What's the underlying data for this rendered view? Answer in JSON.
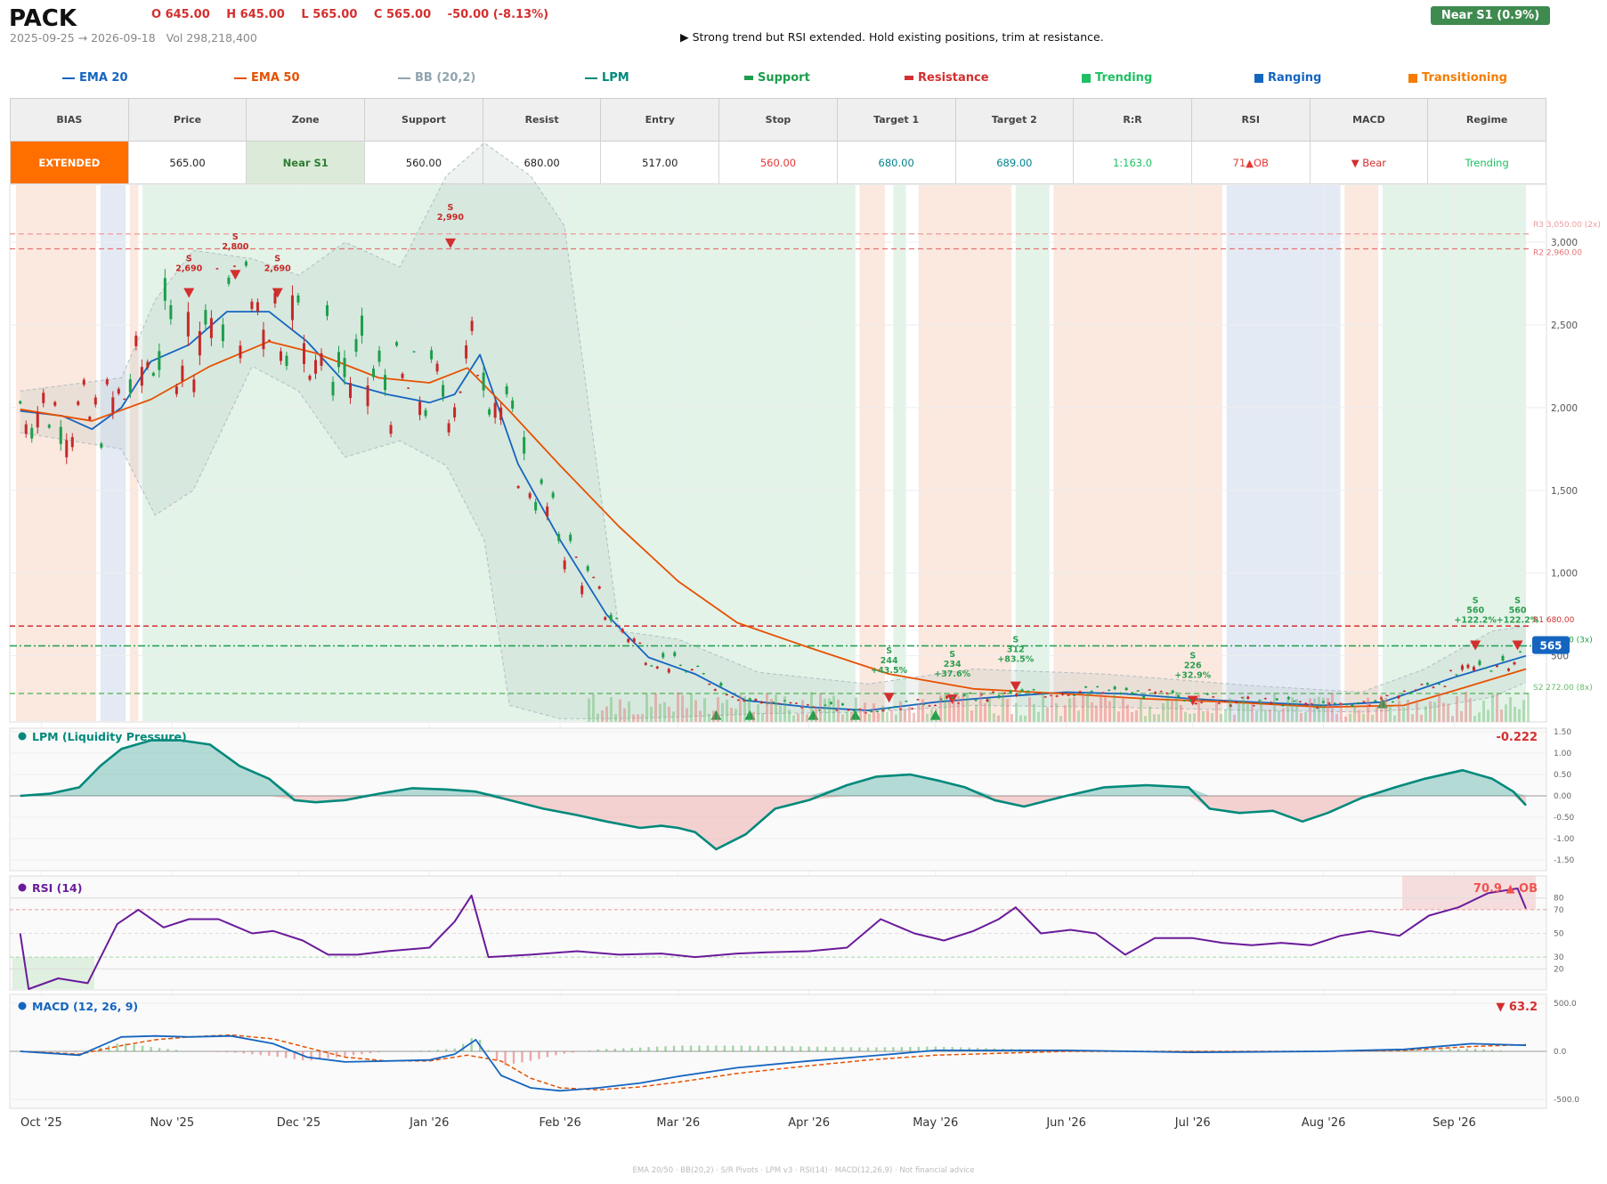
{
  "header": {
    "ticker": "PACK",
    "ohlc": [
      "O 645.00",
      "H 645.00",
      "L 565.00",
      "C 565.00",
      "-50.00  (-8.13%)"
    ],
    "date_range": "2025-09-25 → 2026-09-18",
    "volume": "Vol 298,218,400",
    "advice": "▶  Strong trend but RSI extended. Hold existing positions, trim at resistance.",
    "zone_badge": "Near S1  (0.9%)"
  },
  "legend": [
    {
      "label": "EMA 20",
      "color": "#1565c0",
      "shape": "line"
    },
    {
      "label": "EMA 50",
      "color": "#e65100",
      "shape": "line"
    },
    {
      "label": "BB (20,2)",
      "color": "#90a4ae",
      "shape": "line"
    },
    {
      "label": "LPM",
      "color": "#00897b",
      "shape": "line"
    },
    {
      "label": "Support",
      "color": "#1b9e4b",
      "shape": "dash"
    },
    {
      "label": "Resistance",
      "color": "#d32f2f",
      "shape": "dash"
    },
    {
      "label": "Trending",
      "color": "#1fc063",
      "shape": "square"
    },
    {
      "label": "Ranging",
      "color": "#1565c0",
      "shape": "square"
    },
    {
      "label": "Transitioning",
      "color": "#f57c00",
      "shape": "square"
    }
  ],
  "stats_table": {
    "headers": [
      "BIAS",
      "Price",
      "Zone",
      "Support",
      "Resist",
      "Entry",
      "Stop",
      "Target 1",
      "Target 2",
      "R:R",
      "RSI",
      "MACD",
      "Regime"
    ],
    "values": [
      "EXTENDED",
      "565.00",
      "Near S1",
      "560.00",
      "680.00",
      "517.00",
      "560.00",
      "680.00",
      "689.00",
      "1:163.0",
      "71▲OB",
      "▼ Bear",
      "Trending"
    ],
    "value_colors": [
      "#ffffff",
      "#222222",
      "#2e7d32",
      "#222222",
      "#222222",
      "#222222",
      "#e53935",
      "#00838f",
      "#00838f",
      "#1fc063",
      "#e53935",
      "#d32f2f",
      "#1fc063"
    ],
    "bias_bg": "#ff6f00",
    "zone_bg": "#dcebd9"
  },
  "chart_data": [
    {
      "type": "candlestick",
      "title": "PACK",
      "x_ticks": [
        "Oct '25",
        "Nov '25",
        "Dec '25",
        "Jan '26",
        "Feb '26",
        "Mar '26",
        "Apr '26",
        "May '26",
        "Jun '26",
        "Jul '26",
        "Aug '26",
        "Sep '26"
      ],
      "x_range": [
        "2025-09-25",
        "2026-09-18"
      ],
      "y_ticks": [
        500,
        1000,
        1500,
        2000,
        2500,
        3000
      ],
      "ylim": [
        100,
        3350
      ],
      "series": [
        {
          "name": "EMA 20",
          "color": "#1565c0",
          "x": [
            "2025-09-26",
            "2025-10-06",
            "2025-10-13",
            "2025-10-20",
            "2025-10-27",
            "2025-11-05",
            "2025-11-14",
            "2025-11-24",
            "2025-12-03",
            "2025-12-12",
            "2025-12-22",
            "2026-01-01",
            "2026-01-07",
            "2026-01-13",
            "2026-01-22",
            "2026-02-01",
            "2026-02-12",
            "2026-02-22",
            "2026-03-05",
            "2026-03-17",
            "2026-04-01",
            "2026-04-15",
            "2026-05-01",
            "2026-05-15",
            "2026-06-01",
            "2026-06-15",
            "2026-07-01",
            "2026-07-15",
            "2026-08-01",
            "2026-08-15",
            "2026-09-01",
            "2026-09-18"
          ],
          "values": [
            1980,
            1950,
            1870,
            2000,
            2280,
            2380,
            2580,
            2580,
            2400,
            2150,
            2080,
            2030,
            2080,
            2320,
            1660,
            1200,
            750,
            490,
            390,
            230,
            190,
            170,
            220,
            250,
            280,
            270,
            240,
            220,
            200,
            220,
            370,
            500
          ]
        },
        {
          "name": "EMA 50",
          "color": "#e65100",
          "x": [
            "2025-09-26",
            "2025-10-13",
            "2025-10-27",
            "2025-11-10",
            "2025-11-24",
            "2025-12-05",
            "2025-12-20",
            "2026-01-01",
            "2026-01-10",
            "2026-01-20",
            "2026-02-01",
            "2026-02-15",
            "2026-03-01",
            "2026-03-15",
            "2026-04-01",
            "2026-04-20",
            "2026-05-10",
            "2026-06-01",
            "2026-06-20",
            "2026-07-10",
            "2026-08-01",
            "2026-08-20",
            "2026-09-01",
            "2026-09-18"
          ],
          "values": [
            1990,
            1920,
            2050,
            2250,
            2400,
            2330,
            2180,
            2150,
            2240,
            1980,
            1650,
            1280,
            950,
            700,
            550,
            390,
            300,
            270,
            240,
            220,
            190,
            200,
            290,
            420
          ]
        },
        {
          "name": "BB upper",
          "color": "#b0bec5",
          "x": [
            "2025-09-26",
            "2025-10-20",
            "2025-10-28",
            "2025-11-06",
            "2025-11-20",
            "2025-12-01",
            "2025-12-12",
            "2025-12-25",
            "2026-01-05",
            "2026-01-14",
            "2026-01-25",
            "2026-02-02",
            "2026-02-15",
            "2026-03-01",
            "2026-03-20",
            "2026-04-15",
            "2026-05-10",
            "2026-06-10",
            "2026-07-15",
            "2026-08-10",
            "2026-08-25",
            "2026-09-10",
            "2026-09-18"
          ],
          "values": [
            2100,
            2180,
            2650,
            2950,
            2900,
            2800,
            3000,
            2850,
            3400,
            3600,
            3400,
            3100,
            650,
            600,
            400,
            330,
            420,
            390,
            320,
            280,
            420,
            650,
            680
          ]
        },
        {
          "name": "BB lower",
          "color": "#b0bec5",
          "x": [
            "2025-09-26",
            "2025-10-20",
            "2025-10-28",
            "2025-11-06",
            "2025-11-20",
            "2025-12-01",
            "2025-12-12",
            "2025-12-25",
            "2026-01-05",
            "2026-01-14",
            "2026-01-20",
            "2026-02-01",
            "2026-02-15",
            "2026-03-01",
            "2026-03-20",
            "2026-04-15",
            "2026-05-10",
            "2026-06-10",
            "2026-07-15",
            "2026-08-10",
            "2026-08-25",
            "2026-09-10",
            "2026-09-18"
          ],
          "values": [
            1850,
            1750,
            1350,
            1500,
            2250,
            2100,
            1700,
            1800,
            1650,
            1200,
            200,
            120,
            120,
            130,
            150,
            160,
            200,
            190,
            170,
            160,
            180,
            250,
            340
          ]
        }
      ],
      "levels": [
        {
          "label": "R3 3,050.00 (2x)",
          "value": 3050,
          "color": "#ef9a9a"
        },
        {
          "label": "R2 2,960.00",
          "value": 2960,
          "color": "#e57373"
        },
        {
          "label": "R1 680.00",
          "value": 680,
          "color": "#d32f2f"
        },
        {
          "label": "S1 560.00 (3x)",
          "value": 560,
          "color": "#1b9e4b"
        },
        {
          "label": "S2 272.00 (8x)",
          "value": 272,
          "color": "#66bb6a"
        }
      ],
      "last_price": "565",
      "annotations": [
        {
          "text": [
            "S",
            "2,690"
          ],
          "color": "#c62828"
        },
        {
          "text": [
            "S",
            "2,800"
          ],
          "color": "#c62828"
        },
        {
          "text": [
            "S",
            "2,690"
          ],
          "color": "#c62828"
        },
        {
          "text": [
            "S",
            "2,990"
          ],
          "color": "#c62828"
        },
        {
          "text": [
            "S",
            "244",
            "+43.5%"
          ],
          "color": "#2e9e4f"
        },
        {
          "text": [
            "S",
            "234",
            "+37.6%"
          ],
          "color": "#2e9e4f"
        },
        {
          "text": [
            "S",
            "312",
            "+83.5%"
          ],
          "color": "#2e9e4f"
        },
        {
          "text": [
            "S",
            "226",
            "+32.9%"
          ],
          "color": "#2e9e4f"
        },
        {
          "text": [
            "S",
            "560",
            "+122.2%"
          ],
          "color": "#2e9e4f"
        },
        {
          "text": [
            "S",
            "560",
            "+122.2%"
          ],
          "color": "#2e9e4f"
        }
      ],
      "regimes": [
        {
          "from": "2025-09-25",
          "to": "2025-10-14",
          "regime": "Transitioning"
        },
        {
          "from": "2025-10-15",
          "to": "2025-10-21",
          "regime": "Ranging"
        },
        {
          "from": "2025-10-22",
          "to": "2025-10-24",
          "regime": "Transitioning"
        },
        {
          "from": "2025-10-25",
          "to": "2026-04-12",
          "regime": "Trending"
        },
        {
          "from": "2026-04-13",
          "to": "2026-04-19",
          "regime": "Transitioning"
        },
        {
          "from": "2026-04-21",
          "to": "2026-04-24",
          "regime": "Trending"
        },
        {
          "from": "2026-04-27",
          "to": "2026-05-19",
          "regime": "Transitioning"
        },
        {
          "from": "2026-05-20",
          "to": "2026-05-28",
          "regime": "Trending"
        },
        {
          "from": "2026-05-29",
          "to": "2026-07-08",
          "regime": "Transitioning"
        },
        {
          "from": "2026-07-09",
          "to": "2026-08-05",
          "regime": "Ranging"
        },
        {
          "from": "2026-08-06",
          "to": "2026-08-14",
          "regime": "Transitioning"
        },
        {
          "from": "2026-08-15",
          "to": "2026-09-18",
          "regime": "Trending"
        }
      ]
    },
    {
      "type": "area",
      "title": "LPM (Liquidity Pressure)",
      "current": "-0.222",
      "y_ticks": [
        "1.50",
        "1.00",
        "0.50",
        "0.00",
        "-0.50",
        "-1.00",
        "-1.50"
      ],
      "ylim": [
        -1.6,
        1.6
      ],
      "x": [
        "2025-09-26",
        "2025-10-03",
        "2025-10-10",
        "2025-10-15",
        "2025-10-20",
        "2025-10-27",
        "2025-11-03",
        "2025-11-10",
        "2025-11-17",
        "2025-11-24",
        "2025-11-30",
        "2025-12-05",
        "2025-12-12",
        "2025-12-20",
        "2025-12-28",
        "2026-01-05",
        "2026-01-12",
        "2026-01-20",
        "2026-01-28",
        "2026-02-05",
        "2026-02-12",
        "2026-02-20",
        "2026-02-25",
        "2026-03-01",
        "2026-03-05",
        "2026-03-10",
        "2026-03-17",
        "2026-03-24",
        "2026-04-01",
        "2026-04-10",
        "2026-04-17",
        "2026-04-25",
        "2026-05-02",
        "2026-05-08",
        "2026-05-15",
        "2026-05-22",
        "2026-06-01",
        "2026-06-10",
        "2026-06-20",
        "2026-06-30",
        "2026-07-05",
        "2026-07-12",
        "2026-07-20",
        "2026-07-27",
        "2026-08-02",
        "2026-08-10",
        "2026-08-18",
        "2026-08-25",
        "2026-09-03",
        "2026-09-10",
        "2026-09-15",
        "2026-09-18"
      ],
      "values": [
        0.0,
        0.05,
        0.2,
        0.7,
        1.1,
        1.3,
        1.3,
        1.2,
        0.7,
        0.4,
        -0.1,
        -0.15,
        -0.1,
        0.05,
        0.18,
        0.15,
        0.1,
        -0.1,
        -0.3,
        -0.45,
        -0.6,
        -0.75,
        -0.7,
        -0.75,
        -0.85,
        -1.25,
        -0.9,
        -0.3,
        -0.1,
        0.25,
        0.45,
        0.5,
        0.35,
        0.2,
        -0.1,
        -0.25,
        0.0,
        0.2,
        0.25,
        0.2,
        -0.3,
        -0.4,
        -0.35,
        -0.6,
        -0.4,
        -0.05,
        0.2,
        0.4,
        0.6,
        0.4,
        0.1,
        -0.22
      ]
    },
    {
      "type": "line",
      "title": "RSI (14)",
      "current": "70.9 ▲ OB",
      "y_ticks": [
        "80",
        "70",
        "50",
        "30",
        "20"
      ],
      "ylim": [
        0,
        100
      ],
      "x": [
        "2025-09-26",
        "2025-09-28",
        "2025-10-05",
        "2025-10-12",
        "2025-10-19",
        "2025-10-24",
        "2025-10-30",
        "2025-11-05",
        "2025-11-12",
        "2025-11-20",
        "2025-11-25",
        "2025-12-02",
        "2025-12-08",
        "2025-12-15",
        "2025-12-22",
        "2026-01-01",
        "2026-01-07",
        "2026-01-11",
        "2026-01-15",
        "2026-01-25",
        "2026-02-05",
        "2026-02-15",
        "2026-02-25",
        "2026-03-05",
        "2026-03-15",
        "2026-03-22",
        "2026-04-01",
        "2026-04-10",
        "2026-04-18",
        "2026-04-26",
        "2026-05-03",
        "2026-05-10",
        "2026-05-16",
        "2026-05-20",
        "2026-05-26",
        "2026-06-02",
        "2026-06-08",
        "2026-06-15",
        "2026-06-22",
        "2026-07-01",
        "2026-07-08",
        "2026-07-15",
        "2026-07-22",
        "2026-07-29",
        "2026-08-05",
        "2026-08-12",
        "2026-08-19",
        "2026-08-26",
        "2026-09-02",
        "2026-09-09",
        "2026-09-16",
        "2026-09-18"
      ],
      "values": [
        50,
        3,
        12,
        8,
        58,
        70,
        55,
        62,
        62,
        50,
        52,
        44,
        32,
        32,
        35,
        38,
        60,
        82,
        30,
        32,
        35,
        32,
        33,
        30,
        33,
        34,
        35,
        38,
        62,
        50,
        44,
        52,
        62,
        72,
        50,
        53,
        50,
        32,
        46,
        46,
        42,
        40,
        42,
        40,
        48,
        52,
        48,
        65,
        72,
        84,
        88,
        71
      ]
    },
    {
      "type": "line",
      "title": "MACD (12, 26, 9)",
      "current": "▼ 63.2",
      "y_ticks": [
        "500.0",
        "0.0",
        "-500.0"
      ],
      "ylim": [
        -520,
        520
      ],
      "series": [
        {
          "name": "MACD",
          "color": "#1565c0",
          "x": [
            "2025-09-26",
            "2025-10-10",
            "2025-10-20",
            "2025-10-28",
            "2025-11-05",
            "2025-11-15",
            "2025-11-25",
            "2025-12-03",
            "2025-12-12",
            "2025-12-22",
            "2026-01-01",
            "2026-01-07",
            "2026-01-12",
            "2026-01-18",
            "2026-01-25",
            "2026-02-01",
            "2026-02-10",
            "2026-02-20",
            "2026-03-01",
            "2026-03-15",
            "2026-04-01",
            "2026-04-15",
            "2026-05-01",
            "2026-06-01",
            "2026-07-01",
            "2026-08-01",
            "2026-08-20",
            "2026-09-05",
            "2026-09-18"
          ],
          "values": [
            0,
            -40,
            150,
            160,
            150,
            160,
            80,
            -60,
            -110,
            -100,
            -90,
            -30,
            120,
            -250,
            -380,
            -410,
            -380,
            -330,
            -260,
            -170,
            -100,
            -50,
            10,
            10,
            -10,
            0,
            20,
            80,
            63
          ]
        },
        {
          "name": "Signal",
          "color": "#e65100",
          "x": [
            "2025-09-26",
            "2025-10-10",
            "2025-10-20",
            "2025-10-28",
            "2025-11-05",
            "2025-11-15",
            "2025-11-25",
            "2025-12-03",
            "2025-12-12",
            "2025-12-22",
            "2026-01-01",
            "2026-01-10",
            "2026-01-18",
            "2026-01-25",
            "2026-02-01",
            "2026-02-10",
            "2026-02-20",
            "2026-03-01",
            "2026-03-15",
            "2026-04-01",
            "2026-04-15",
            "2026-05-01",
            "2026-06-01",
            "2026-07-01",
            "2026-08-01",
            "2026-08-20",
            "2026-09-05",
            "2026-09-18"
          ],
          "values": [
            0,
            -30,
            60,
            120,
            150,
            170,
            130,
            40,
            -60,
            -100,
            -100,
            -40,
            -100,
            -280,
            -380,
            -400,
            -370,
            -320,
            -230,
            -150,
            -90,
            -40,
            0,
            0,
            0,
            10,
            50,
            70
          ]
        }
      ]
    }
  ],
  "footer": "EMA 20/50  ·  BB(20,2)  ·  S/R Pivots  ·  LPM v3  ·  RSI(14)  ·  MACD(12,26,9)  ·  Not financial advice"
}
